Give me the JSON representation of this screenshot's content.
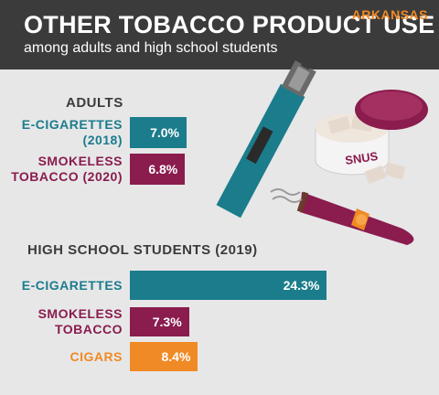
{
  "header": {
    "title": "OTHER TOBACCO PRODUCT USE",
    "subtitle": "among adults and high school students",
    "state": "ARKANSAS"
  },
  "illustration": {
    "tin_label": "SNUS"
  },
  "chart_data": [
    {
      "type": "bar",
      "orientation": "horizontal",
      "title": "ADULTS",
      "categories": [
        "E-CIGARETTES\n(2018)",
        "SMOKELESS\nTOBACCO (2020)"
      ],
      "values": [
        7.0,
        6.8
      ],
      "value_labels": [
        "7.0%",
        "6.8%"
      ],
      "colors": [
        "#1b7c8c",
        "#8a1c4e"
      ]
    },
    {
      "type": "bar",
      "orientation": "horizontal",
      "title": "HIGH SCHOOL STUDENTS (2019)",
      "categories": [
        "E-CIGARETTES",
        "SMOKELESS\nTOBACCO",
        "CIGARS"
      ],
      "values": [
        24.3,
        7.3,
        8.4
      ],
      "value_labels": [
        "24.3%",
        "7.3%",
        "8.4%"
      ],
      "colors": [
        "#1b7c8c",
        "#8a1c4e",
        "#f08a24"
      ]
    }
  ]
}
